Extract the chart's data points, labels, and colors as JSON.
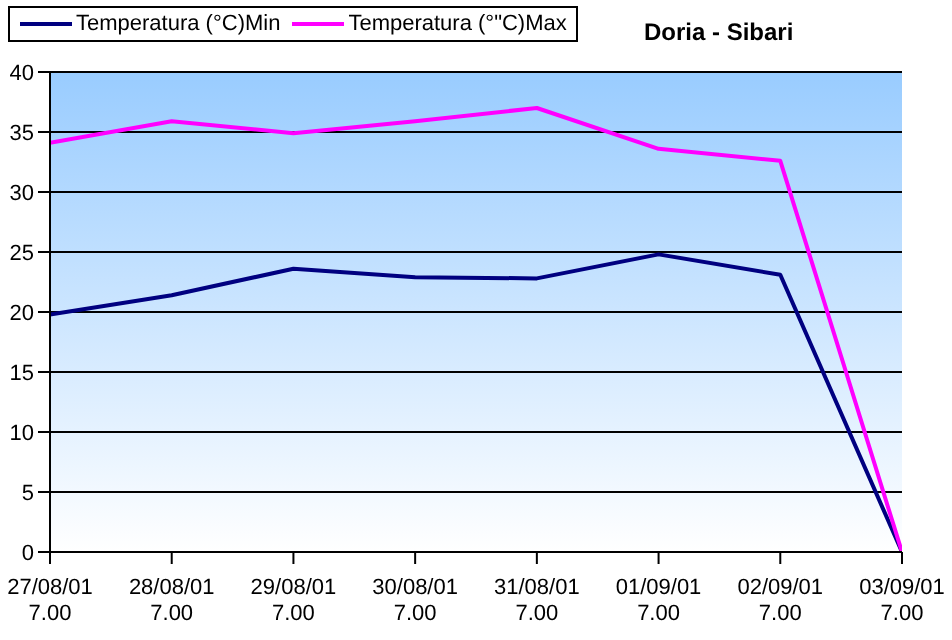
{
  "chart_data": {
    "type": "line",
    "title": "Doria - Sibari",
    "categories": [
      "27/08/01\n7.00",
      "28/08/01\n7.00",
      "29/08/01\n7.00",
      "30/08/01\n7.00",
      "31/08/01\n7.00",
      "01/09/01\n7.00",
      "02/09/01\n7.00",
      "03/09/01\n7.00"
    ],
    "series": [
      {
        "name": "Temperatura (°C)Min",
        "color": "#000080",
        "values": [
          19.8,
          21.4,
          23.6,
          22.9,
          22.8,
          24.8,
          23.1,
          0
        ]
      },
      {
        "name": "Temperatura (°\"C)Max",
        "color": "#ff00ff",
        "values": [
          34.1,
          35.9,
          34.9,
          35.9,
          37.0,
          33.6,
          32.6,
          0
        ]
      }
    ],
    "ylim": [
      0,
      40
    ],
    "yticks": [
      0,
      5,
      10,
      15,
      20,
      25,
      30,
      35,
      40
    ],
    "grid": "y",
    "legend": "top left",
    "marker": "none"
  }
}
